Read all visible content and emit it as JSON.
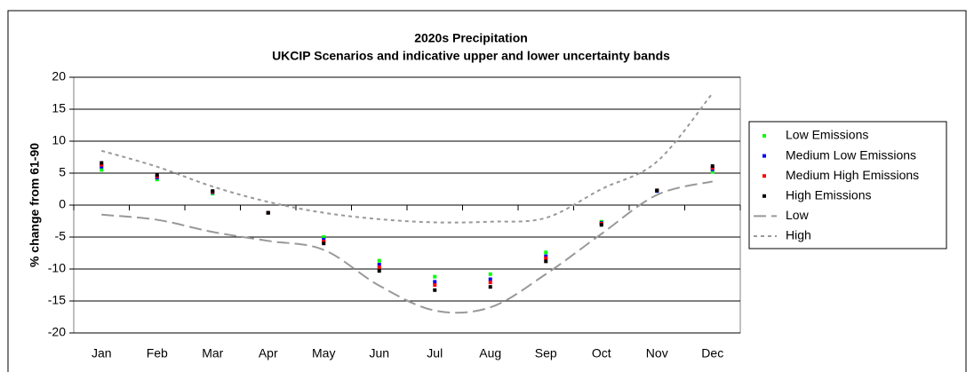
{
  "chart_data": {
    "type": "scatter_line",
    "title": "2020s Precipitation",
    "subtitle": "UKCIP Scenarios and indicative upper and lower uncertainty bands",
    "y_label": "% change from 61-90",
    "categories": [
      "Jan",
      "Feb",
      "Mar",
      "Apr",
      "May",
      "Jun",
      "Jul",
      "Aug",
      "Sep",
      "Oct",
      "Nov",
      "Dec"
    ],
    "ylim": [
      -20,
      20
    ],
    "yticks": [
      -20,
      -15,
      -10,
      -5,
      0,
      5,
      10,
      15,
      20
    ],
    "grid": true,
    "legend": "right",
    "series": [
      {
        "name": "Low Emissions",
        "color": "#00ff00",
        "style": "marker",
        "values": [
          5.5,
          4,
          1.8,
          -1.2,
          -5,
          -8.7,
          -11.2,
          -10.8,
          -7.4,
          -2.6,
          2.2,
          5.2
        ]
      },
      {
        "name": "Medium Low Emissions",
        "color": "#0000ff",
        "style": "marker",
        "values": [
          6,
          4.3,
          2,
          -1.2,
          -5.4,
          -9.3,
          -12,
          -11.6,
          -8,
          -2.8,
          2.2,
          5.6
        ]
      },
      {
        "name": "Medium High Emissions",
        "color": "#ff0000",
        "style": "marker",
        "values": [
          6.3,
          4.5,
          2.1,
          -1.2,
          -5.7,
          -9.7,
          -12.5,
          -12.1,
          -8.3,
          -2.9,
          2.3,
          5.8
        ]
      },
      {
        "name": "High Emissions",
        "color": "#000000",
        "style": "marker",
        "values": [
          6.6,
          4.7,
          2.2,
          -1.2,
          -6,
          -10.3,
          -13.3,
          -12.8,
          -8.8,
          -3.1,
          2.3,
          6.1
        ]
      },
      {
        "name": "Low",
        "color": "#999999",
        "style": "longdash",
        "values": [
          -1.5,
          -2.3,
          -4.2,
          -5.6,
          -7,
          -12.6,
          -16.5,
          -16,
          -10.8,
          -4.5,
          1.6,
          3.7
        ]
      },
      {
        "name": "High",
        "color": "#999999",
        "style": "shortdash",
        "values": [
          8.5,
          6,
          2.9,
          0.5,
          -1.2,
          -2.2,
          -2.7,
          -2.6,
          -2,
          2.5,
          6.8,
          17.5
        ]
      }
    ]
  }
}
